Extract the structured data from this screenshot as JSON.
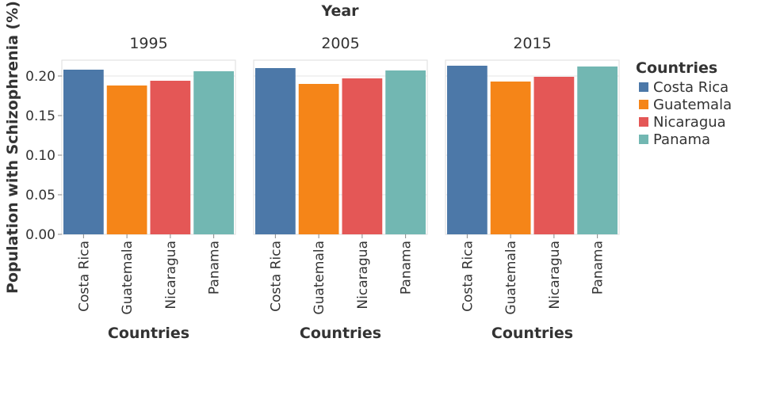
{
  "chart_data": {
    "type": "bar",
    "column_header": "Year",
    "ylabel": "Population with Schizophrenia (%)",
    "xlabel": "Countries",
    "ylim": [
      0,
      0.22
    ],
    "yticks": [
      "0.00",
      "0.05",
      "0.10",
      "0.15",
      "0.20"
    ],
    "categories": [
      "Costa Rica",
      "Guatemala",
      "Nicaragua",
      "Panama"
    ],
    "facets": [
      {
        "label": "1995",
        "values": [
          0.208,
          0.188,
          0.194,
          0.206
        ]
      },
      {
        "label": "2005",
        "values": [
          0.21,
          0.19,
          0.197,
          0.207
        ]
      },
      {
        "label": "2015",
        "values": [
          0.213,
          0.193,
          0.199,
          0.212
        ]
      }
    ],
    "legend": {
      "title": "Countries",
      "position": "right",
      "items": [
        "Costa Rica",
        "Guatemala",
        "Nicaragua",
        "Panama"
      ]
    },
    "colors": [
      "#4c78a8",
      "#f58518",
      "#e45756",
      "#72b7b2"
    ],
    "grid": true
  }
}
